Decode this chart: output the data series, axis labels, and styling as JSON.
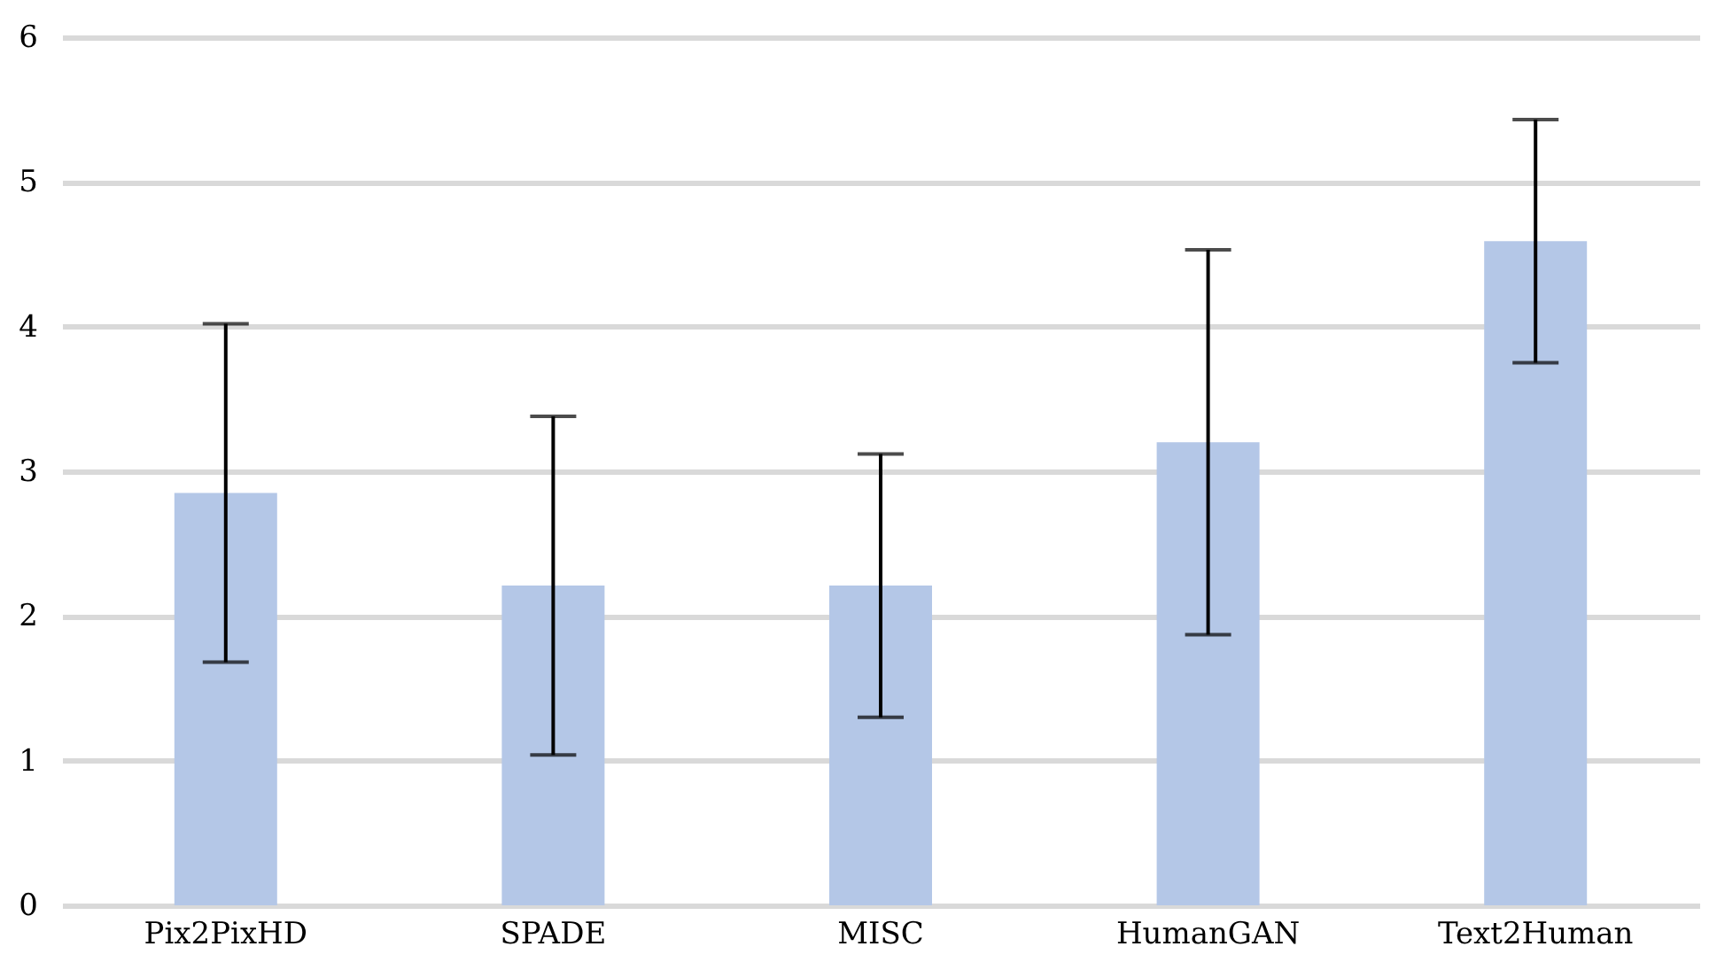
{
  "chart_data": {
    "type": "bar",
    "categories": [
      "Pix2PixHD",
      "SPADE",
      "MISC",
      "HumanGAN",
      "Text2Human"
    ],
    "values": [
      2.85,
      2.21,
      2.21,
      3.2,
      4.59
    ],
    "errors": [
      1.17,
      1.17,
      0.91,
      1.33,
      0.84
    ],
    "color": "#b4c7e7",
    "ylim": [
      0,
      6
    ],
    "yticks": [
      0,
      1,
      2,
      3,
      4,
      5,
      6
    ],
    "grid": "y"
  }
}
